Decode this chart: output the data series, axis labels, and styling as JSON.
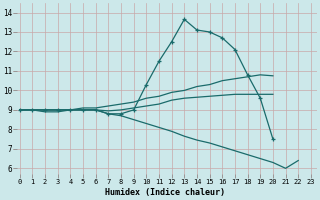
{
  "xlabel": "Humidex (Indice chaleur)",
  "bg_color": "#cce8ea",
  "grid_color": "#b0d0d2",
  "line_color": "#1a6b6b",
  "xlim": [
    -0.5,
    23.5
  ],
  "ylim": [
    5.5,
    14.5
  ],
  "xticks": [
    0,
    1,
    2,
    3,
    4,
    5,
    6,
    7,
    8,
    9,
    10,
    11,
    12,
    13,
    14,
    15,
    16,
    17,
    18,
    19,
    20,
    21,
    22,
    23
  ],
  "yticks": [
    6,
    7,
    8,
    9,
    10,
    11,
    12,
    13,
    14
  ],
  "series": [
    {
      "x": [
        0,
        1,
        2,
        3,
        4,
        5,
        6,
        7,
        8,
        9,
        10,
        11,
        12,
        13,
        14,
        15,
        16,
        17,
        18,
        19,
        20
      ],
      "y": [
        9,
        9,
        9,
        9,
        9,
        9,
        9,
        8.8,
        8.8,
        9.0,
        10.3,
        11.5,
        12.5,
        13.65,
        13.1,
        13.0,
        12.7,
        12.1,
        10.8,
        9.6,
        7.5
      ],
      "marker": true
    },
    {
      "x": [
        0,
        1,
        2,
        3,
        4,
        5,
        6,
        7,
        8,
        9,
        10,
        11,
        12,
        13,
        14,
        15,
        16,
        17,
        18,
        19,
        20
      ],
      "y": [
        9,
        9,
        9,
        9.0,
        9.0,
        9.1,
        9.1,
        9.2,
        9.3,
        9.4,
        9.6,
        9.7,
        9.9,
        10.0,
        10.2,
        10.3,
        10.5,
        10.6,
        10.7,
        10.8,
        10.75
      ],
      "marker": false
    },
    {
      "x": [
        0,
        1,
        2,
        3,
        4,
        5,
        6,
        7,
        8,
        9,
        10,
        11,
        12,
        13,
        14,
        15,
        16,
        17,
        18,
        19,
        20
      ],
      "y": [
        9,
        9,
        8.9,
        8.9,
        9.0,
        9.0,
        9.0,
        8.95,
        9.0,
        9.1,
        9.2,
        9.3,
        9.5,
        9.6,
        9.65,
        9.7,
        9.75,
        9.8,
        9.8,
        9.8,
        9.8
      ],
      "marker": false
    },
    {
      "x": [
        0,
        1,
        2,
        3,
        4,
        5,
        6,
        7,
        8,
        9,
        10,
        11,
        12,
        13,
        14,
        15,
        16,
        17,
        18,
        19,
        20,
        21,
        22
      ],
      "y": [
        9,
        9,
        9,
        9,
        9,
        9,
        9,
        8.8,
        8.7,
        8.5,
        8.3,
        8.1,
        7.9,
        7.65,
        7.45,
        7.3,
        7.1,
        6.9,
        6.7,
        6.5,
        6.3,
        6.0,
        6.4
      ],
      "marker": false
    }
  ]
}
